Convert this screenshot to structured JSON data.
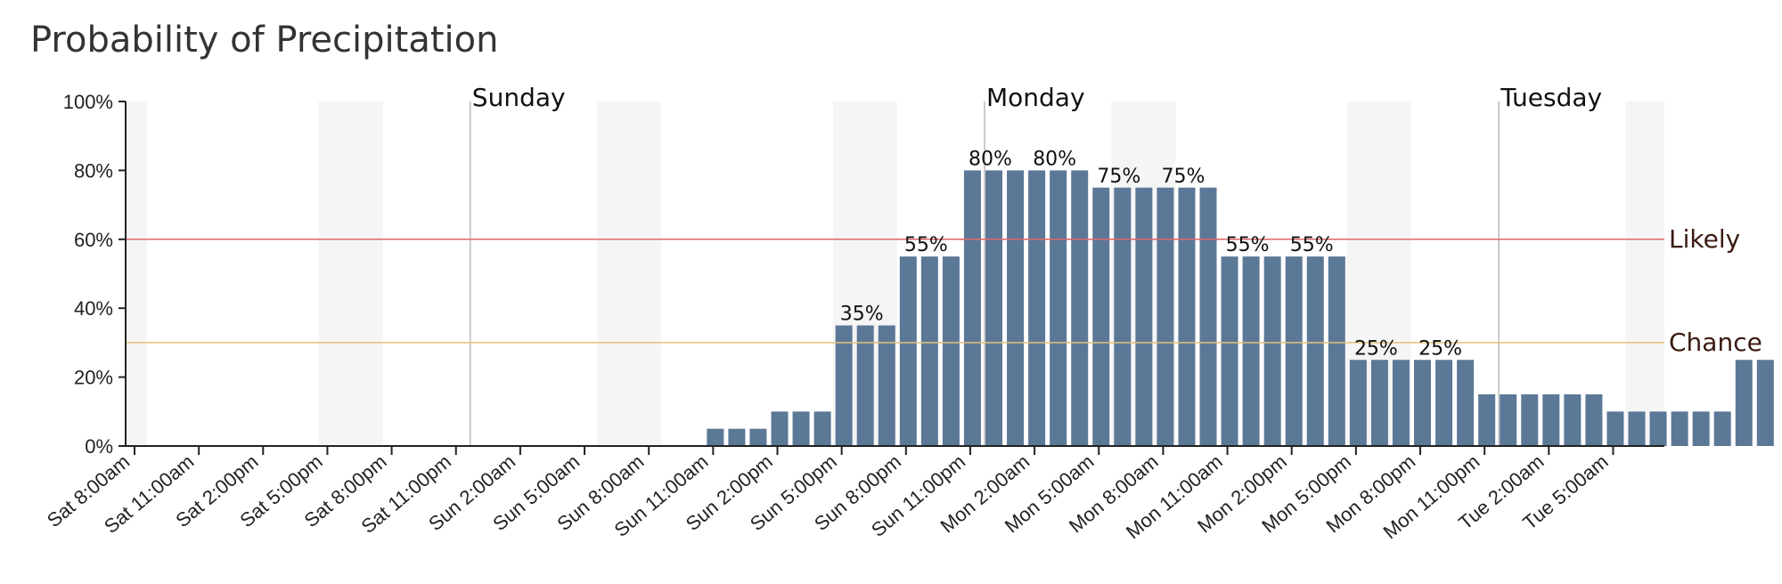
{
  "colors": {
    "bar": "#5b7897",
    "night_shade": "#f5f5f5",
    "likely_line": "#e06666",
    "chance_line": "#e3c27a",
    "axis": "#222222",
    "day_line": "#bbbbbb"
  },
  "chart_data": {
    "type": "bar",
    "title": "Probability of Precipitation",
    "xlabel": "",
    "ylabel": "",
    "ylim": [
      0,
      100
    ],
    "y_ticks": [
      "0%",
      "20%",
      "40%",
      "60%",
      "80%",
      "100%"
    ],
    "x_tick_labels": [
      "Sat 8:00am",
      "Sat 11:00am",
      "Sat 2:00pm",
      "Sat 5:00pm",
      "Sat 8:00pm",
      "Sat 11:00pm",
      "Sun 2:00am",
      "Sun 5:00am",
      "Sun 8:00am",
      "Sun 11:00am",
      "Sun 2:00pm",
      "Sun 5:00pm",
      "Sun 8:00pm",
      "Sun 11:00pm",
      "Mon 2:00am",
      "Mon 5:00am",
      "Mon 8:00am",
      "Mon 11:00am",
      "Mon 2:00pm",
      "Mon 5:00pm",
      "Mon 8:00pm",
      "Mon 11:00pm",
      "Tue 2:00am",
      "Tue 5:00am"
    ],
    "start_hour": "Sat 8:00am",
    "interval_hours": 1,
    "values": [
      0,
      0,
      0,
      0,
      0,
      0,
      0,
      0,
      0,
      0,
      0,
      0,
      0,
      0,
      0,
      0,
      0,
      0,
      0,
      0,
      0,
      0,
      0,
      0,
      0,
      0,
      0,
      5,
      5,
      5,
      10,
      10,
      10,
      35,
      35,
      35,
      55,
      55,
      55,
      80,
      80,
      80,
      80,
      80,
      80,
      75,
      75,
      75,
      75,
      75,
      75,
      55,
      55,
      55,
      55,
      55,
      55,
      25,
      25,
      25,
      25,
      25,
      25,
      15,
      15,
      15,
      15,
      15,
      15,
      10,
      10,
      10,
      10,
      10,
      10,
      25,
      25
    ],
    "bar_labels": [
      {
        "index": 34,
        "text": "35%"
      },
      {
        "index": 37,
        "text": "55%"
      },
      {
        "index": 40,
        "text": "80%"
      },
      {
        "index": 43,
        "text": "80%"
      },
      {
        "index": 46,
        "text": "75%"
      },
      {
        "index": 49,
        "text": "75%"
      },
      {
        "index": 52,
        "text": "55%"
      },
      {
        "index": 55,
        "text": "55%"
      },
      {
        "index": 58,
        "text": "25%"
      },
      {
        "index": 61,
        "text": "25%"
      }
    ],
    "day_markers": [
      {
        "label": "Sunday",
        "index": 16
      },
      {
        "label": "Monday",
        "index": 40
      },
      {
        "label": "Tuesday",
        "index": 64
      }
    ],
    "night_bands": [
      {
        "start": 0,
        "end": 1
      },
      {
        "start": 9,
        "end": 12
      },
      {
        "start": 22,
        "end": 25
      },
      {
        "start": 33,
        "end": 36
      },
      {
        "start": 46,
        "end": 49
      },
      {
        "start": 57,
        "end": 60
      },
      {
        "start": 70,
        "end": 72
      }
    ],
    "thresholds": [
      {
        "label": "Likely",
        "value": 60,
        "color": "#e06666"
      },
      {
        "label": "Chance",
        "value": 30,
        "color": "#e3c27a"
      }
    ],
    "grid": false
  }
}
